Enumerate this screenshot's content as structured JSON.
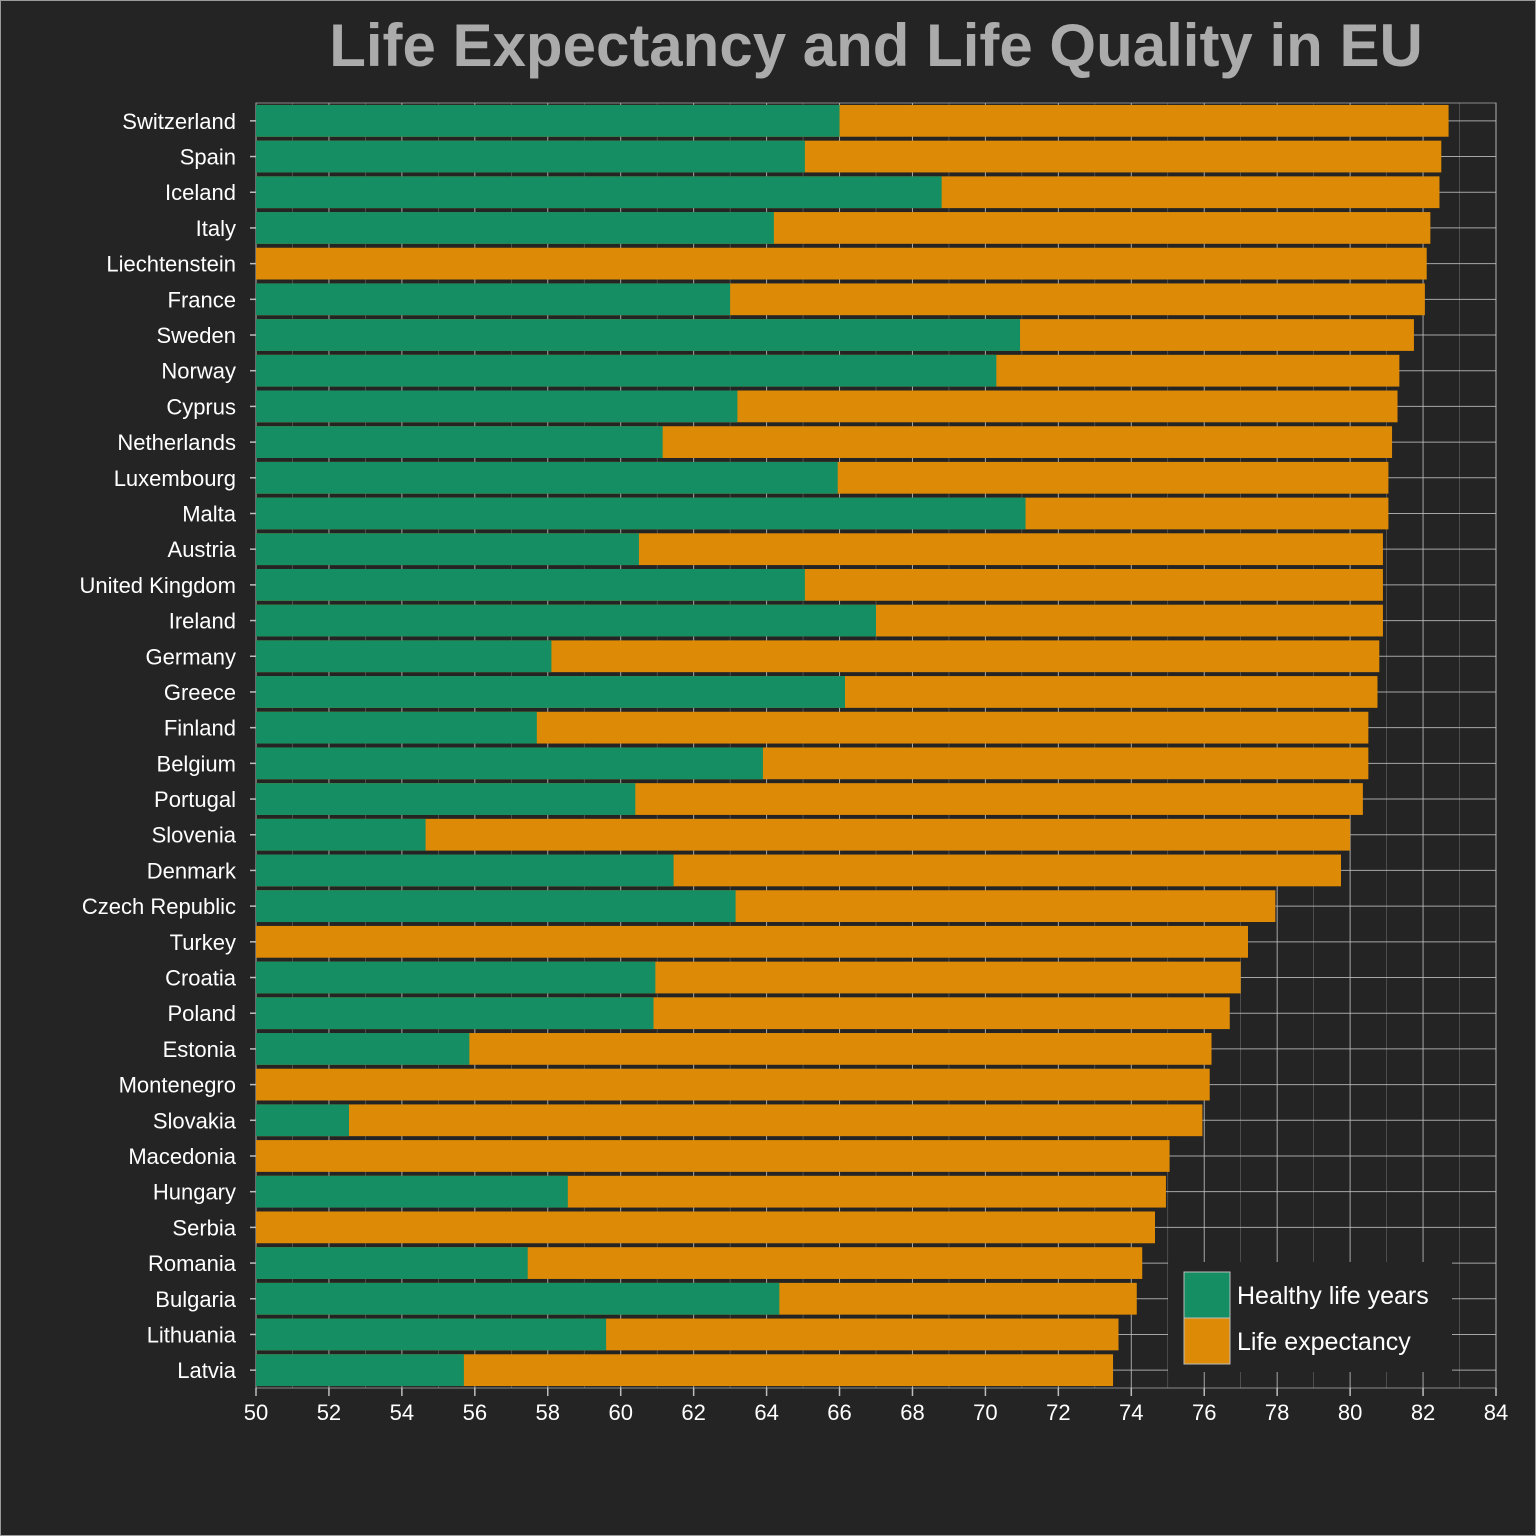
{
  "chart_data": {
    "type": "bar",
    "orientation": "horizontal",
    "stacked": false,
    "title": "Life Expectancy and Life Quality in EU",
    "xlabel": "",
    "ylabel": "",
    "xlim": [
      50,
      84
    ],
    "x_ticks": [
      "50",
      "52",
      "54",
      "56",
      "58",
      "60",
      "62",
      "64",
      "66",
      "68",
      "70",
      "72",
      "74",
      "76",
      "78",
      "80",
      "82",
      "84"
    ],
    "grid": true,
    "legend_position": "bottom-right",
    "categories": [
      "Switzerland",
      "Spain",
      "Iceland",
      "Italy",
      "Liechtenstein",
      "France",
      "Sweden",
      "Norway",
      "Cyprus",
      "Netherlands",
      "Luxembourg",
      "Malta",
      "Austria",
      "United Kingdom",
      "Ireland",
      "Germany",
      "Greece",
      "Finland",
      "Belgium",
      "Portugal",
      "Slovenia",
      "Denmark",
      "Czech Republic",
      "Turkey",
      "Croatia",
      "Poland",
      "Estonia",
      "Montenegro",
      "Slovakia",
      "Macedonia",
      "Hungary",
      "Serbia",
      "Romania",
      "Bulgaria",
      "Lithuania",
      "Latvia"
    ],
    "series": [
      {
        "name": "Life expectancy",
        "color": "#dd8a07",
        "values": [
          82.7,
          82.5,
          82.45,
          82.2,
          82.1,
          82.05,
          81.75,
          81.35,
          81.3,
          81.15,
          81.05,
          81.05,
          80.9,
          80.9,
          80.9,
          80.8,
          80.75,
          80.5,
          80.5,
          80.35,
          80.0,
          79.75,
          77.95,
          77.2,
          77.0,
          76.7,
          76.2,
          76.15,
          75.95,
          75.05,
          74.95,
          74.65,
          74.3,
          74.15,
          73.65,
          73.5
        ]
      },
      {
        "name": "Healthy life years",
        "color": "#148e62",
        "values": [
          66.0,
          65.05,
          68.8,
          64.2,
          null,
          63.0,
          70.95,
          70.3,
          63.2,
          61.15,
          65.95,
          71.1,
          60.5,
          65.05,
          67.0,
          58.1,
          66.15,
          57.7,
          63.9,
          60.4,
          54.65,
          61.45,
          63.15,
          null,
          60.95,
          60.9,
          55.85,
          null,
          52.55,
          null,
          58.55,
          null,
          57.45,
          64.35,
          59.6,
          55.7
        ]
      }
    ]
  },
  "legend": {
    "items": [
      {
        "label": "Healthy life years",
        "color": "#148e62"
      },
      {
        "label": "Life expectancy",
        "color": "#dd8a07"
      }
    ]
  },
  "colors": {
    "background": "#242424",
    "grid": "#bdbdbd",
    "text": "#ffffff",
    "title": "#ababab"
  }
}
